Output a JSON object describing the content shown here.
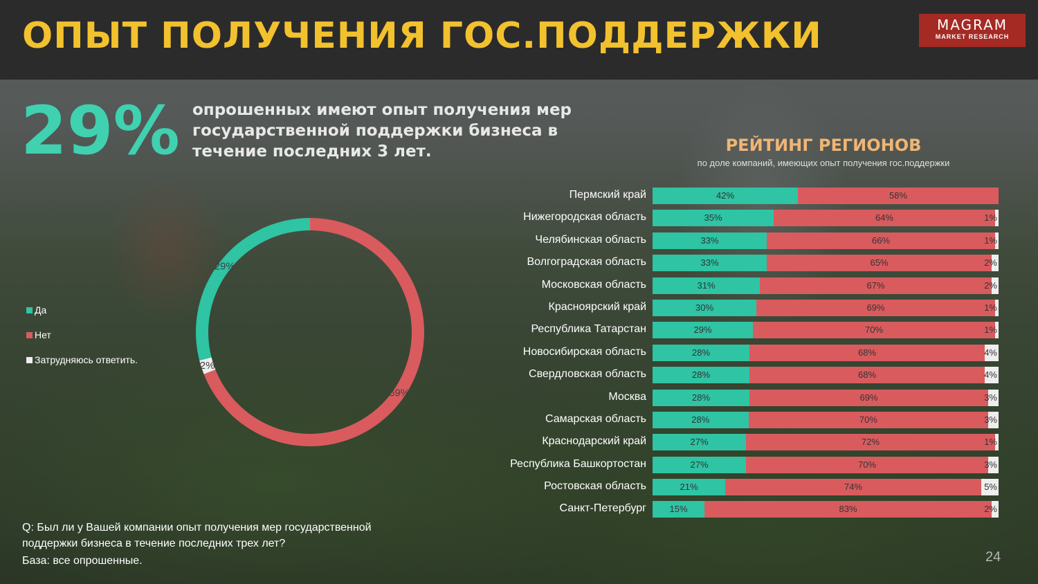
{
  "header": {
    "title": "ОПЫТ ПОЛУЧЕНИЯ ГОС.ПОДДЕРЖКИ",
    "logo_line1": "MAGRAM",
    "logo_line2": "MARKET RESEARCH"
  },
  "highlight": {
    "value": "29%",
    "text": "опрошенных имеют опыт получения мер государственной поддержки бизнеса в течение последних 3 лет."
  },
  "colors": {
    "yes": "#2ec4a4",
    "no": "#d95b5e",
    "dk": "#eeeeee",
    "title": "#f2c12e",
    "accent": "#3fd1b0"
  },
  "chart_data": [
    {
      "type": "pie",
      "variant": "donut",
      "legend": "left",
      "categories": [
        "Да",
        "Нет",
        "Затрудняюсь ответить."
      ],
      "values": [
        29,
        69,
        2
      ],
      "labels": [
        "29%",
        "69%",
        "2%"
      ]
    },
    {
      "type": "bar",
      "orientation": "horizontal",
      "stacked": true,
      "title": "РЕЙТИНГ РЕГИОНОВ",
      "subtitle": "по доле компаний, имеющих опыт получения гос.поддержки",
      "categories": [
        "Пермский край",
        "Нижегородская область",
        "Челябинская область",
        "Волгоградская область",
        "Московская область",
        "Красноярский край",
        "Республика Татарстан",
        "Новосибирская область",
        "Свердловская область",
        "Москва",
        "Самарская область",
        "Краснодарский край",
        "Республика Башкортостан",
        "Ростовская область",
        "Санкт-Петербург"
      ],
      "series": [
        {
          "name": "Да",
          "values": [
            42,
            35,
            33,
            33,
            31,
            30,
            29,
            28,
            28,
            28,
            28,
            27,
            27,
            21,
            15
          ]
        },
        {
          "name": "Нет",
          "values": [
            58,
            64,
            66,
            65,
            67,
            69,
            70,
            68,
            68,
            69,
            70,
            72,
            70,
            74,
            83
          ]
        },
        {
          "name": "Затрудняюсь ответить.",
          "values": [
            0,
            1,
            1,
            2,
            2,
            1,
            1,
            4,
            4,
            3,
            3,
            1,
            3,
            5,
            2
          ]
        }
      ],
      "xlim": [
        0,
        100
      ]
    }
  ],
  "footer": {
    "question": "Q: Был ли у Вашей компании опыт получения мер государственной поддержки бизнеса в течение последних трех лет?",
    "base": "База: все опрошенные.",
    "page": "24"
  }
}
